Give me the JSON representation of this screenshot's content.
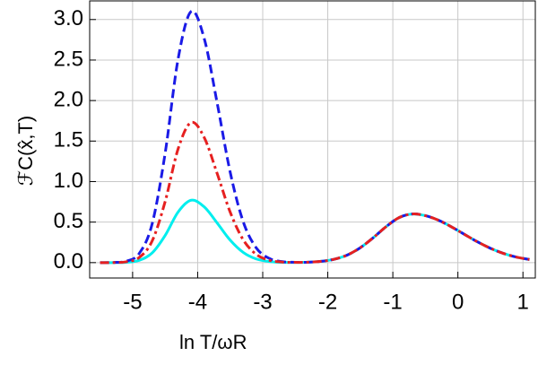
{
  "chart_data": {
    "type": "line",
    "xlabel": "ln T/ωR",
    "ylabel": "ℱC(x̂,T)",
    "x": [
      -5.5,
      -5.3,
      -5.1,
      -4.9,
      -4.7,
      -4.5,
      -4.3,
      -4.1,
      -3.9,
      -3.7,
      -3.5,
      -3.3,
      -3.1,
      -2.9,
      -2.7,
      -2.5,
      -2.3,
      -2.1,
      -1.9,
      -1.7,
      -1.5,
      -1.3,
      -1.1,
      -0.9,
      -0.7,
      -0.5,
      -0.3,
      -0.1,
      0.1,
      0.3,
      0.5,
      0.7,
      0.9,
      1.1
    ],
    "series": [
      {
        "color": "#00eeee",
        "dash": "solid",
        "values": [
          0,
          0,
          0.004,
          0.028,
          0.119,
          0.335,
          0.625,
          0.77,
          0.688,
          0.489,
          0.277,
          0.126,
          0.045,
          0.013,
          0.003,
          0.002,
          0.005,
          0.016,
          0.042,
          0.094,
          0.184,
          0.308,
          0.446,
          0.557,
          0.6,
          0.58,
          0.524,
          0.442,
          0.349,
          0.257,
          0.177,
          0.114,
          0.068,
          0.038
        ]
      },
      {
        "color": "#1a1ae6",
        "dash": "dashed",
        "values": [
          0,
          0.002,
          0.017,
          0.111,
          0.477,
          1.349,
          2.517,
          3.1,
          2.768,
          1.969,
          1.116,
          0.505,
          0.182,
          0.052,
          0.012,
          0.004,
          0.005,
          0.016,
          0.042,
          0.094,
          0.184,
          0.308,
          0.446,
          0.557,
          0.6,
          0.58,
          0.524,
          0.442,
          0.349,
          0.257,
          0.177,
          0.114,
          0.068,
          0.038
        ]
      },
      {
        "color": "#e62020",
        "dash": "dashdot",
        "values": [
          0,
          0.001,
          0.01,
          0.062,
          0.266,
          0.753,
          1.405,
          1.73,
          1.545,
          1.099,
          0.623,
          0.282,
          0.102,
          0.029,
          0.007,
          0.003,
          0.005,
          0.016,
          0.042,
          0.094,
          0.184,
          0.308,
          0.446,
          0.557,
          0.6,
          0.58,
          0.524,
          0.442,
          0.349,
          0.257,
          0.177,
          0.114,
          0.068,
          0.038
        ]
      }
    ],
    "xlim": [
      -5.66,
      1.19
    ],
    "ylim": [
      -0.19,
      3.23
    ],
    "xticks": [
      -5,
      -4,
      -3,
      -2,
      -1,
      0,
      1
    ],
    "yticks": [
      {
        "value": 0,
        "label": "0.0"
      },
      {
        "value": 0.5,
        "label": "0.5"
      },
      {
        "value": 1,
        "label": "1.0"
      },
      {
        "value": 1.5,
        "label": "1.5"
      },
      {
        "value": 2,
        "label": "2.0"
      },
      {
        "value": 2.5,
        "label": "2.5"
      },
      {
        "value": 3,
        "label": "3.0"
      }
    ],
    "grid": true
  }
}
